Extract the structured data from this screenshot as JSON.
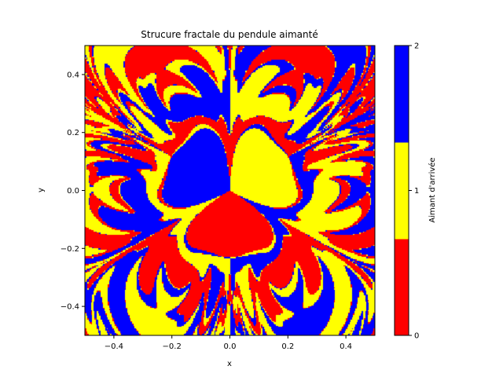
{
  "chart_data": {
    "type": "heatmap",
    "title": "Strucure fractale du pendule aimanté",
    "xlabel": "x",
    "ylabel": "y",
    "xlim": [
      -0.5,
      0.5
    ],
    "ylim": [
      -0.5,
      0.5
    ],
    "xticks": [
      -0.4,
      -0.2,
      0.0,
      0.2,
      0.4
    ],
    "xtick_labels": [
      "−0.4",
      "−0.2",
      "0.0",
      "0.2",
      "0.4"
    ],
    "yticks": [
      -0.4,
      -0.2,
      0.0,
      0.2,
      0.4
    ],
    "ytick_labels": [
      "−0.4",
      "−0.2",
      "0.0",
      "0.2",
      "0.4"
    ],
    "grid": false,
    "magnets": [
      {
        "index": 0,
        "x": 0.0,
        "y": -0.173,
        "color": "#ff0000"
      },
      {
        "index": 1,
        "x": 0.15,
        "y": 0.087,
        "color": "#ffff00"
      },
      {
        "index": 2,
        "x": -0.15,
        "y": 0.087,
        "color": "#0000ff"
      }
    ],
    "colorbar": {
      "label": "Aimant d'arrivée",
      "range": [
        0,
        2
      ],
      "ticks": [
        0,
        1,
        2
      ],
      "tick_labels": [
        "0",
        "1",
        "2"
      ],
      "colors": [
        "#ff0000",
        "#ffff00",
        "#0000ff"
      ]
    }
  }
}
